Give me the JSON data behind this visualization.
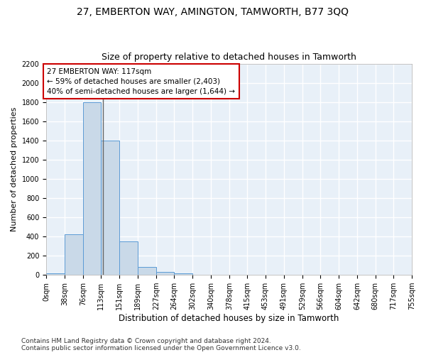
{
  "title": "27, EMBERTON WAY, AMINGTON, TAMWORTH, B77 3QQ",
  "subtitle": "Size of property relative to detached houses in Tamworth",
  "xlabel": "Distribution of detached houses by size in Tamworth",
  "ylabel": "Number of detached properties",
  "bin_edges": [
    0,
    38,
    76,
    113,
    151,
    189,
    227,
    264,
    302,
    340,
    378,
    415,
    453,
    491,
    529,
    566,
    604,
    642,
    680,
    717,
    755
  ],
  "bar_heights": [
    20,
    420,
    1800,
    1400,
    350,
    80,
    30,
    20,
    0,
    0,
    0,
    0,
    0,
    0,
    0,
    0,
    0,
    0,
    0,
    0
  ],
  "bar_color": "#c9d9e8",
  "bar_edge_color": "#5b9bd5",
  "background_color": "#e8f0f8",
  "fig_background_color": "#ffffff",
  "grid_color": "#ffffff",
  "property_size": 117,
  "annotation_text": "27 EMBERTON WAY: 117sqm\n← 59% of detached houses are smaller (2,403)\n40% of semi-detached houses are larger (1,644) →",
  "annotation_box_color": "#ffffff",
  "annotation_box_edge_color": "#cc0000",
  "vline_color": "#666666",
  "ylim": [
    0,
    2200
  ],
  "yticks": [
    0,
    200,
    400,
    600,
    800,
    1000,
    1200,
    1400,
    1600,
    1800,
    2000,
    2200
  ],
  "footer_text": "Contains HM Land Registry data © Crown copyright and database right 2024.\nContains public sector information licensed under the Open Government Licence v3.0.",
  "title_fontsize": 10,
  "subtitle_fontsize": 9,
  "ylabel_fontsize": 8,
  "xlabel_fontsize": 8.5,
  "tick_fontsize": 7,
  "annotation_fontsize": 7.5,
  "footer_fontsize": 6.5
}
